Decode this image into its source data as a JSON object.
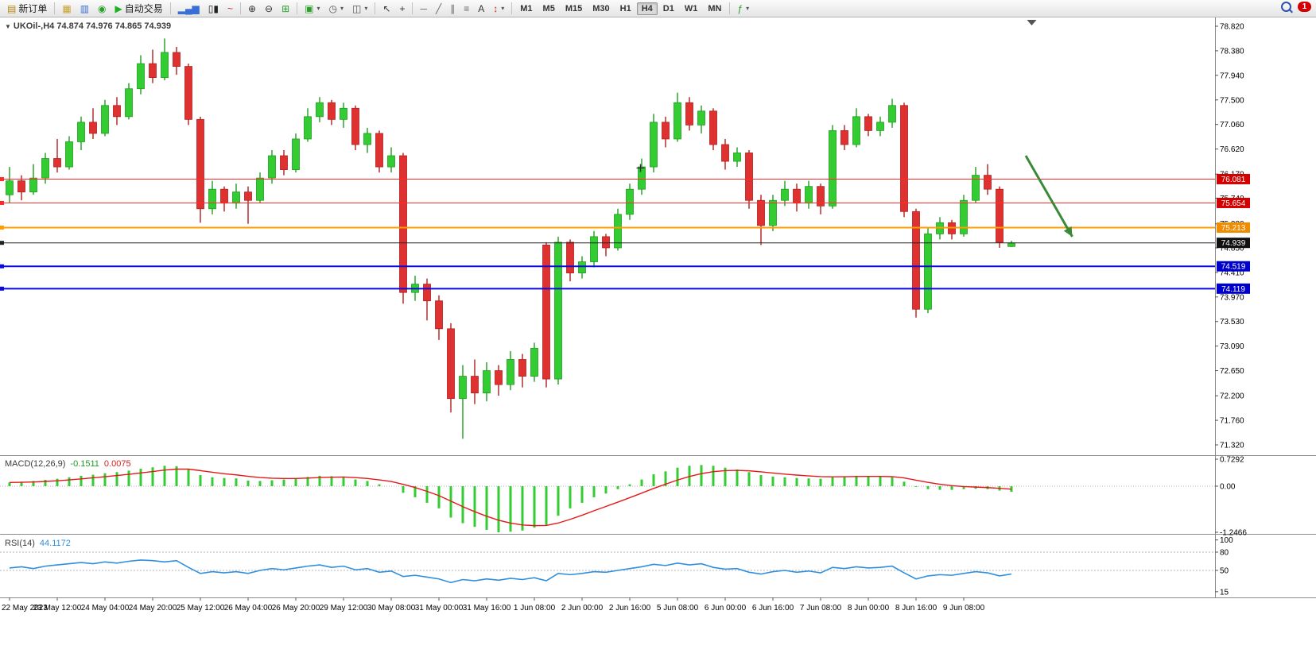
{
  "toolbar": {
    "new_order_label": "新订单",
    "autotrade_label": "自动交易",
    "timeframes": [
      "M1",
      "M5",
      "M15",
      "M30",
      "H1",
      "H4",
      "D1",
      "W1",
      "MN"
    ],
    "active_timeframe": "H4",
    "notification_count": "1",
    "groups": [
      {
        "items": [
          {
            "name": "new-order-button",
            "icon": "doc-plus-icon",
            "label": "新订单"
          }
        ]
      },
      {
        "items": [
          {
            "name": "profiles-button",
            "icon": "profiles-icon"
          },
          {
            "name": "charts-window-button",
            "icon": "charts-icon"
          },
          {
            "name": "navigator-button",
            "icon": "navigator-icon"
          },
          {
            "name": "autotrade-button",
            "icon": "play-icon",
            "label": "自动交易"
          }
        ]
      },
      {
        "items": [
          {
            "name": "bar-chart-button",
            "icon": "bars-icon"
          },
          {
            "name": "candlestick-chart-button",
            "icon": "candles-icon"
          },
          {
            "name": "line-chart-button",
            "icon": "linechart-icon"
          }
        ]
      },
      {
        "items": [
          {
            "name": "zoom-in-button",
            "icon": "zoom-in-icon"
          },
          {
            "name": "zoom-out-button",
            "icon": "zoom-out-icon"
          },
          {
            "name": "tile-windows-button",
            "icon": "tile-icon"
          }
        ]
      },
      {
        "items": [
          {
            "name": "new-chart-button",
            "icon": "new-chart-icon",
            "caret": true
          },
          {
            "name": "period-menu-button",
            "icon": "clock-icon",
            "caret": true
          },
          {
            "name": "snapshot-button",
            "icon": "snapshot-icon",
            "caret": true
          }
        ]
      },
      {
        "items": [
          {
            "name": "cursor-button",
            "icon": "cursor-icon"
          },
          {
            "name": "crosshair-button",
            "icon": "crosshair-icon"
          }
        ]
      },
      {
        "items": [
          {
            "name": "hline-tool-button",
            "icon": "hline-icon"
          },
          {
            "name": "trendline-tool-button",
            "icon": "trendline-icon"
          },
          {
            "name": "channel-tool-button",
            "icon": "channel-icon"
          },
          {
            "name": "fibonacci-tool-button",
            "icon": "fibo-icon"
          },
          {
            "name": "text-tool-button",
            "icon": "text-icon"
          },
          {
            "name": "arrows-tool-button",
            "icon": "arrows-icon",
            "caret": true
          }
        ]
      },
      {
        "type": "timeframes"
      },
      {
        "items": [
          {
            "name": "indicators-button",
            "icon": "indicators-icon",
            "caret": true
          }
        ]
      }
    ]
  },
  "chart": {
    "title_symbol": "UKOil-,H4",
    "title_ohlc": "74.874 74.976 74.865 74.939",
    "colors": {
      "up": "#33cc33",
      "up_edge": "#1e9e1e",
      "down": "#e03131",
      "down_edge": "#b02020",
      "macd_bar": "#33cc33",
      "macd_signal": "#e51919",
      "rsi_line": "#2f8fdf",
      "arrow": "#3a8a3a"
    }
  },
  "chart_data": [
    {
      "type": "candlestick",
      "symbol": "UKOil-",
      "period": "H4",
      "last_price": "74.939",
      "y_ticks": [
        "78.820",
        "78.380",
        "77.940",
        "77.500",
        "77.060",
        "76.620",
        "76.170",
        "75.740",
        "75.280",
        "74.850",
        "74.410",
        "73.970",
        "73.530",
        "73.090",
        "72.650",
        "72.200",
        "71.760",
        "71.320"
      ],
      "time_labels": [
        "22 May 2023",
        "23 May 12:00",
        "24 May 04:00",
        "24 May 20:00",
        "25 May 12:00",
        "26 May 04:00",
        "26 May 20:00",
        "29 May 12:00",
        "30 May 08:00",
        "31 May 00:00",
        "31 May 16:00",
        "1 Jun 08:00",
        "2 Jun 00:00",
        "2 Jun 16:00",
        "5 Jun 08:00",
        "6 Jun 00:00",
        "6 Jun 16:00",
        "7 Jun 08:00",
        "8 Jun 00:00",
        "8 Jun 16:00",
        "9 Jun 08:00"
      ],
      "label_every": 4,
      "hlines": [
        {
          "name": "resistance-line-1",
          "price": 76.081,
          "label": "76.081",
          "color": "#ff2a2a",
          "box": "#d40000",
          "width": 1
        },
        {
          "name": "resistance-line-2",
          "price": 75.654,
          "label": "75.654",
          "color": "#ff2a2a",
          "box": "#d40000",
          "width": 1
        },
        {
          "name": "pivot-line",
          "price": 75.213,
          "label": "75.213",
          "color": "#ff9c00",
          "box": "#f08c00",
          "width": 2
        },
        {
          "name": "current-price-line",
          "price": 74.939,
          "label": "74.939",
          "color": "#222222",
          "box": "#111111",
          "width": 1
        },
        {
          "name": "support-line-1",
          "price": 74.519,
          "label": "74.519",
          "color": "#0a0ae0",
          "box": "#0000cc",
          "width": 2
        },
        {
          "name": "support-line-2",
          "price": 74.119,
          "label": "74.119",
          "color": "#0a0ae0",
          "box": "#0000cc",
          "width": 2
        }
      ],
      "annotations": {
        "arrow": {
          "x1_bar": 85.2,
          "p1": 76.5,
          "x2_bar": 89.1,
          "p2": 75.05
        },
        "plus_marker": {
          "bar": 52.9,
          "price": 76.28
        },
        "shift_marker_bar": 85.7
      },
      "ohlc": [
        [
          75.8,
          76.3,
          75.65,
          76.05
        ],
        [
          76.05,
          76.15,
          75.7,
          75.85
        ],
        [
          75.85,
          76.35,
          75.8,
          76.1
        ],
        [
          76.1,
          76.55,
          76.0,
          76.45
        ],
        [
          76.45,
          76.8,
          76.2,
          76.3
        ],
        [
          76.3,
          76.85,
          76.25,
          76.75
        ],
        [
          76.75,
          77.2,
          76.6,
          77.1
        ],
        [
          77.1,
          77.35,
          76.8,
          76.9
        ],
        [
          76.9,
          77.5,
          76.85,
          77.4
        ],
        [
          77.4,
          77.55,
          77.05,
          77.2
        ],
        [
          77.2,
          77.8,
          77.15,
          77.7
        ],
        [
          77.7,
          78.3,
          77.6,
          78.15
        ],
        [
          78.15,
          78.4,
          77.8,
          77.9
        ],
        [
          77.9,
          78.6,
          77.85,
          78.35
        ],
        [
          78.35,
          78.45,
          77.95,
          78.1
        ],
        [
          78.1,
          78.15,
          77.05,
          77.15
        ],
        [
          77.15,
          77.2,
          75.3,
          75.55
        ],
        [
          75.55,
          76.05,
          75.45,
          75.9
        ],
        [
          75.9,
          75.95,
          75.5,
          75.65
        ],
        [
          75.65,
          76.0,
          75.55,
          75.85
        ],
        [
          75.85,
          75.95,
          75.28,
          75.7
        ],
        [
          75.7,
          76.2,
          75.65,
          76.1
        ],
        [
          76.1,
          76.6,
          76.0,
          76.5
        ],
        [
          76.5,
          76.6,
          76.15,
          76.25
        ],
        [
          76.25,
          76.9,
          76.2,
          76.8
        ],
        [
          76.8,
          77.35,
          76.75,
          77.2
        ],
        [
          77.2,
          77.55,
          77.1,
          77.45
        ],
        [
          77.45,
          77.5,
          77.05,
          77.15
        ],
        [
          77.15,
          77.45,
          77.0,
          77.35
        ],
        [
          77.35,
          77.4,
          76.6,
          76.7
        ],
        [
          76.7,
          77.0,
          76.55,
          76.9
        ],
        [
          76.9,
          76.95,
          76.2,
          76.3
        ],
        [
          76.3,
          76.65,
          76.2,
          76.5
        ],
        [
          76.5,
          76.55,
          73.85,
          74.05
        ],
        [
          74.05,
          74.35,
          73.9,
          74.2
        ],
        [
          74.2,
          74.3,
          73.55,
          73.9
        ],
        [
          73.9,
          74.0,
          73.2,
          73.4
        ],
        [
          73.4,
          73.5,
          71.9,
          72.15
        ],
        [
          72.15,
          72.75,
          71.43,
          72.55
        ],
        [
          72.55,
          72.85,
          72.05,
          72.25
        ],
        [
          72.25,
          72.8,
          72.1,
          72.65
        ],
        [
          72.65,
          72.75,
          72.2,
          72.4
        ],
        [
          72.4,
          73.0,
          72.3,
          72.85
        ],
        [
          72.85,
          72.95,
          72.35,
          72.55
        ],
        [
          72.55,
          73.15,
          72.45,
          73.05
        ],
        [
          74.9,
          74.95,
          72.35,
          72.5
        ],
        [
          72.5,
          75.05,
          72.4,
          74.95
        ],
        [
          74.95,
          75.0,
          74.25,
          74.4
        ],
        [
          74.4,
          74.7,
          74.3,
          74.6
        ],
        [
          74.6,
          75.15,
          74.5,
          75.05
        ],
        [
          75.05,
          75.1,
          74.7,
          74.85
        ],
        [
          74.85,
          75.55,
          74.8,
          75.45
        ],
        [
          75.45,
          76.0,
          75.35,
          75.9
        ],
        [
          75.9,
          76.45,
          75.8,
          76.3
        ],
        [
          76.3,
          77.25,
          76.2,
          77.1
        ],
        [
          77.1,
          77.2,
          76.65,
          76.8
        ],
        [
          76.8,
          77.63,
          76.75,
          77.45
        ],
        [
          77.45,
          77.55,
          76.95,
          77.05
        ],
        [
          77.05,
          77.4,
          76.9,
          77.3
        ],
        [
          77.3,
          77.35,
          76.6,
          76.7
        ],
        [
          76.7,
          76.8,
          76.25,
          76.4
        ],
        [
          76.4,
          76.65,
          76.3,
          76.55
        ],
        [
          76.55,
          76.6,
          75.55,
          75.7
        ],
        [
          75.7,
          75.8,
          74.9,
          75.25
        ],
        [
          75.25,
          75.8,
          75.15,
          75.7
        ],
        [
          75.7,
          76.05,
          75.6,
          75.9
        ],
        [
          75.9,
          76.0,
          75.5,
          75.65
        ],
        [
          75.65,
          76.05,
          75.55,
          75.95
        ],
        [
          75.95,
          76.0,
          75.45,
          75.6
        ],
        [
          75.6,
          77.05,
          75.55,
          76.95
        ],
        [
          76.95,
          77.05,
          76.6,
          76.7
        ],
        [
          76.7,
          77.35,
          76.65,
          77.2
        ],
        [
          77.2,
          77.25,
          76.85,
          76.95
        ],
        [
          76.95,
          77.2,
          76.85,
          77.1
        ],
        [
          77.1,
          77.52,
          77.0,
          77.4
        ],
        [
          77.4,
          77.45,
          75.4,
          75.5
        ],
        [
          75.5,
          75.55,
          73.6,
          73.75
        ],
        [
          73.75,
          75.2,
          73.68,
          75.1
        ],
        [
          75.1,
          75.4,
          75.0,
          75.3
        ],
        [
          75.3,
          75.35,
          75.0,
          75.1
        ],
        [
          75.1,
          75.8,
          75.05,
          75.7
        ],
        [
          75.7,
          76.3,
          75.65,
          76.15
        ],
        [
          76.15,
          76.35,
          75.8,
          75.9
        ],
        [
          75.9,
          75.95,
          74.85,
          74.95
        ],
        [
          74.874,
          74.976,
          74.865,
          74.939
        ]
      ]
    },
    {
      "type": "bar",
      "name": "MACD(12,26,9)",
      "value_main": "-0.1511",
      "value_signal": "0.0075",
      "scale": {
        "max": 0.7292,
        "min": -1.2466,
        "labels": [
          {
            "v": 0.7292,
            "t": "0.7292"
          },
          {
            "v": 0,
            "t": "0.00"
          },
          {
            "v": -1.2466,
            "t": "-1.2466"
          }
        ]
      },
      "values": [
        0.1,
        0.12,
        0.14,
        0.17,
        0.2,
        0.24,
        0.28,
        0.31,
        0.35,
        0.38,
        0.42,
        0.47,
        0.51,
        0.55,
        0.54,
        0.46,
        0.3,
        0.24,
        0.22,
        0.21,
        0.15,
        0.14,
        0.16,
        0.18,
        0.21,
        0.25,
        0.28,
        0.27,
        0.26,
        0.18,
        0.14,
        0.05,
        0.0,
        -0.18,
        -0.3,
        -0.45,
        -0.6,
        -0.85,
        -1.0,
        -1.1,
        -1.18,
        -1.2466,
        -1.23,
        -1.2,
        -1.12,
        -1.05,
        -0.8,
        -0.6,
        -0.45,
        -0.3,
        -0.2,
        -0.08,
        0.05,
        0.18,
        0.32,
        0.4,
        0.5,
        0.55,
        0.57,
        0.55,
        0.5,
        0.45,
        0.38,
        0.3,
        0.26,
        0.24,
        0.22,
        0.21,
        0.2,
        0.24,
        0.26,
        0.28,
        0.27,
        0.26,
        0.24,
        0.12,
        -0.02,
        -0.08,
        -0.1,
        -0.1,
        -0.08,
        -0.07,
        -0.08,
        -0.12,
        -0.1511
      ]
    },
    {
      "type": "line",
      "name": "RSI(14)",
      "value": "44.1172",
      "levels": [
        80,
        50
      ],
      "scale_labels": [
        {
          "v": 100,
          "t": "100"
        },
        {
          "v": 80,
          "t": "80"
        },
        {
          "v": 50,
          "t": "50"
        },
        {
          "v": 15,
          "t": "15"
        }
      ],
      "values": [
        54,
        56,
        53,
        57,
        59,
        61,
        63,
        61,
        64,
        62,
        65,
        67,
        66,
        64,
        66,
        55,
        45,
        48,
        46,
        48,
        45,
        50,
        53,
        51,
        54,
        57,
        59,
        55,
        57,
        51,
        53,
        47,
        49,
        40,
        42,
        39,
        36,
        30,
        35,
        33,
        36,
        34,
        37,
        35,
        38,
        33,
        45,
        43,
        45,
        48,
        47,
        50,
        53,
        56,
        60,
        58,
        62,
        59,
        61,
        55,
        52,
        53,
        47,
        44,
        48,
        50,
        47,
        49,
        46,
        55,
        53,
        56,
        54,
        55,
        57,
        46,
        36,
        41,
        43,
        42,
        45,
        48,
        46,
        41,
        44.1172
      ]
    }
  ]
}
